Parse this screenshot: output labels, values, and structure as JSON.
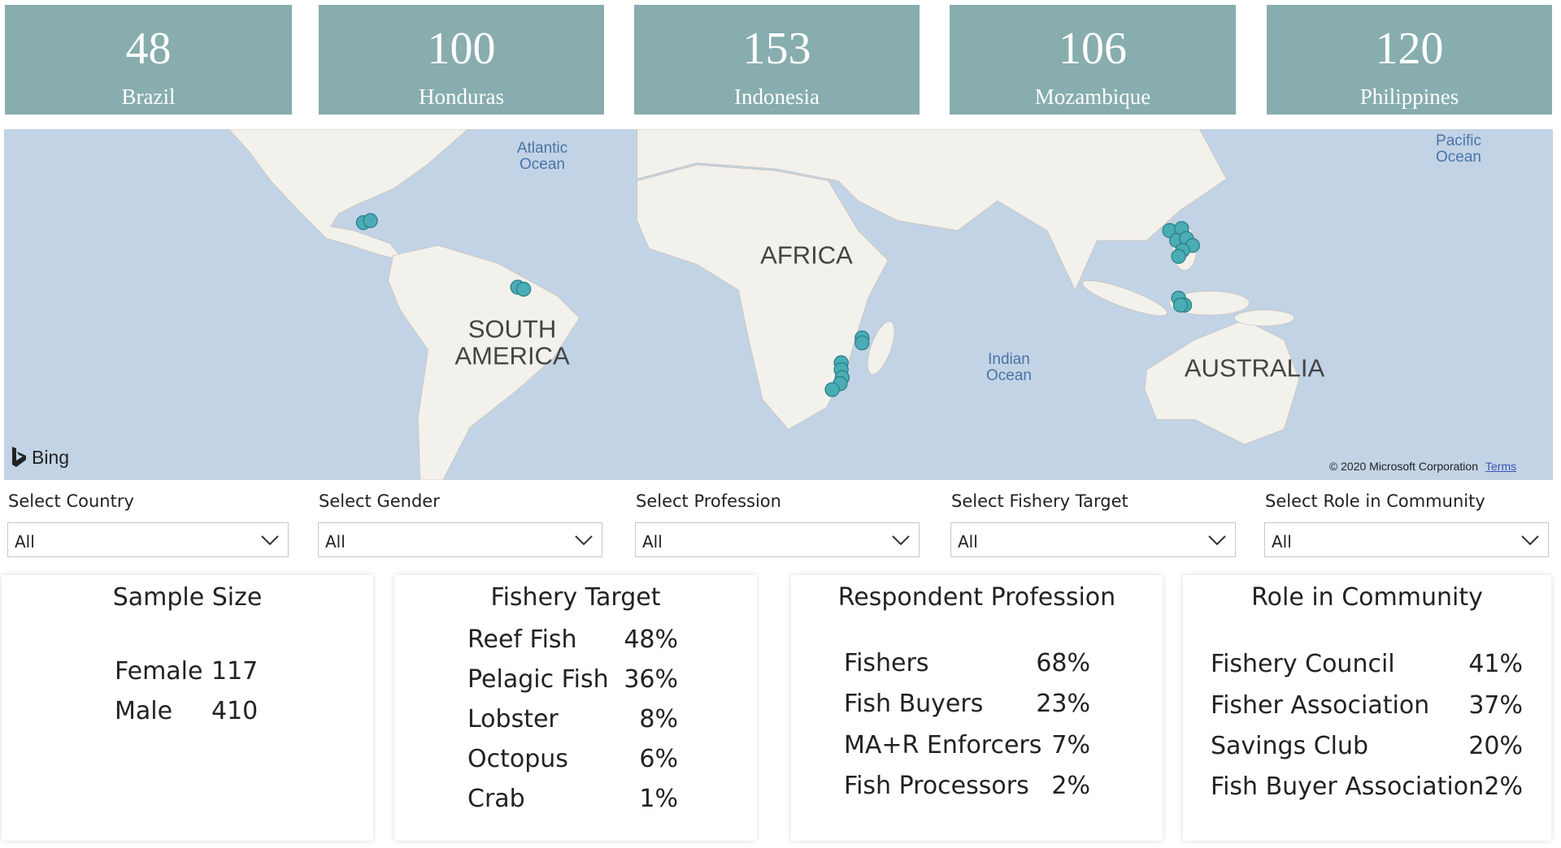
{
  "country_cards": [
    {
      "value": 48,
      "country": "Brazil"
    },
    {
      "value": 100,
      "country": "Honduras"
    },
    {
      "value": 153,
      "country": "Indonesia"
    },
    {
      "value": 106,
      "country": "Mozambique"
    },
    {
      "value": 120,
      "country": "Philippines"
    }
  ],
  "map": {
    "labels": [
      "Atlantic Ocean",
      "Pacific Ocean",
      "AFRICA",
      "SOUTH AMERICA",
      "Indian Ocean",
      "AUSTRALIA"
    ],
    "provider": "Bing",
    "copyright": "© 2020 Microsoft Corporation",
    "terms": "Terms"
  },
  "filters": [
    {
      "label": "Select Country",
      "value": "All"
    },
    {
      "label": "Select Gender",
      "value": "All"
    },
    {
      "label": "Select Profession",
      "value": "All"
    },
    {
      "label": "Select Fishery Target",
      "value": "All"
    },
    {
      "label": "Select Role in Community",
      "value": "All"
    }
  ],
  "panels": [
    {
      "title": "Sample Size",
      "rows": [
        [
          "Female",
          117
        ],
        [
          "Male",
          410
        ]
      ]
    },
    {
      "title": "Fishery Target",
      "rows": [
        [
          "Reef Fish",
          "48%"
        ],
        [
          "Pelagic Fish",
          "36%"
        ],
        [
          "Lobster",
          "8%"
        ],
        [
          "Octopus",
          "6%"
        ],
        [
          "Crab",
          "1%"
        ]
      ]
    },
    {
      "title": "Respondent Profession",
      "rows": [
        [
          "Fishers",
          "68%"
        ],
        [
          "Fish Buyers",
          "23%"
        ],
        [
          "MA+R Enforcers",
          "7%"
        ],
        [
          "Fish Processors",
          "2%"
        ]
      ]
    },
    {
      "title": "Role in Community",
      "rows": [
        [
          "Fishery Council",
          "41%"
        ],
        [
          "Fisher Association",
          "37%"
        ],
        [
          "Savings Club",
          "20%"
        ],
        [
          "Fish Buyer Association",
          "2%"
        ]
      ]
    }
  ]
}
